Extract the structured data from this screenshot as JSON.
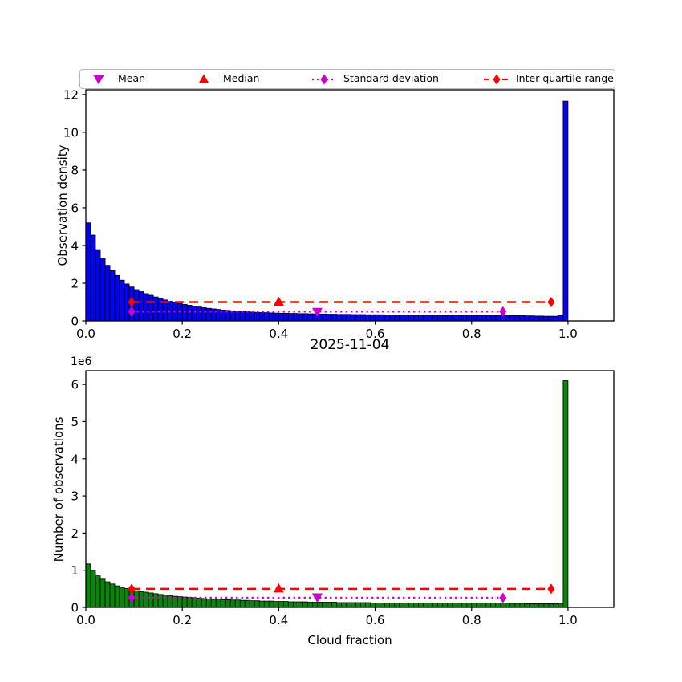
{
  "title": "2025-11-04",
  "xlabel": "Cloud fraction",
  "colors": {
    "bar_top": "#0404f0",
    "bar_bottom": "#0a840a",
    "bar_edge": "#000000",
    "median_iqr": "#ff0000",
    "mean_std": "#cc00cc",
    "axis": "#000000"
  },
  "legend": {
    "items": [
      {
        "label": "Mean",
        "marker": "triangle-down",
        "line": "none",
        "color": "#cc00cc"
      },
      {
        "label": "Median",
        "marker": "triangle-up",
        "line": "none",
        "color": "#ff0000"
      },
      {
        "label": "Standard deviation",
        "marker": "diamond",
        "line": "dotted",
        "color": "#cc00cc"
      },
      {
        "label": "Inter quartile range",
        "marker": "diamond",
        "line": "dashed",
        "color": "#ff0000"
      }
    ]
  },
  "chart_data": [
    {
      "type": "bar",
      "name": "observation-density-histogram",
      "ylabel": "Observation density",
      "bar_color": "#0404f0",
      "bin_start": 0.0,
      "bin_width": 0.01,
      "xlim": [
        0,
        1.095
      ],
      "ylim": [
        0,
        12.25
      ],
      "xticks": [
        0,
        0.2,
        0.4,
        0.6,
        0.8,
        1.0
      ],
      "xtick_labels": [
        "0.0",
        "0.2",
        "0.4",
        "0.6",
        "0.8",
        "1.0"
      ],
      "yticks": [
        0,
        2,
        4,
        6,
        8,
        10,
        12
      ],
      "ytick_labels": [
        "0",
        "2",
        "4",
        "6",
        "8",
        "10",
        "12"
      ],
      "values": [
        5.2,
        4.55,
        3.78,
        3.32,
        2.95,
        2.66,
        2.41,
        2.16,
        1.96,
        1.8,
        1.66,
        1.55,
        1.45,
        1.36,
        1.27,
        1.19,
        1.11,
        1.04,
        0.98,
        0.93,
        0.88,
        0.83,
        0.78,
        0.74,
        0.7,
        0.67,
        0.64,
        0.61,
        0.58,
        0.56,
        0.54,
        0.52,
        0.5,
        0.49,
        0.47,
        0.46,
        0.45,
        0.44,
        0.43,
        0.42,
        0.41,
        0.41,
        0.4,
        0.4,
        0.39,
        0.39,
        0.38,
        0.38,
        0.37,
        0.37,
        0.36,
        0.36,
        0.35,
        0.35,
        0.35,
        0.34,
        0.34,
        0.34,
        0.33,
        0.33,
        0.33,
        0.33,
        0.32,
        0.32,
        0.32,
        0.32,
        0.32,
        0.31,
        0.31,
        0.31,
        0.31,
        0.31,
        0.31,
        0.3,
        0.3,
        0.3,
        0.3,
        0.3,
        0.3,
        0.3,
        0.3,
        0.3,
        0.3,
        0.3,
        0.3,
        0.3,
        0.3,
        0.3,
        0.29,
        0.28,
        0.28,
        0.27,
        0.27,
        0.26,
        0.26,
        0.25,
        0.25,
        0.25,
        0.28,
        11.65
      ],
      "stats": {
        "mean_x": 0.48,
        "mean_marker_y": 0.5,
        "median_x": 0.4,
        "median_marker_y": 1.0,
        "std_x": [
          0.095,
          0.865
        ],
        "std_line_y": 0.5,
        "iqr_x": [
          0.095,
          0.965
        ],
        "iqr_line_y": 1.0
      }
    },
    {
      "type": "bar",
      "name": "number-of-observations-histogram",
      "ylabel": "Number of observations",
      "y_offset_label": "1e6",
      "bar_color": "#0a840a",
      "bin_start": 0.0,
      "bin_width": 0.01,
      "xlim": [
        0,
        1.095
      ],
      "ylim": [
        0,
        6.37
      ],
      "xticks": [
        0,
        0.2,
        0.4,
        0.6,
        0.8,
        1.0
      ],
      "xtick_labels": [
        "0.0",
        "0.2",
        "0.4",
        "0.6",
        "0.8",
        "1.0"
      ],
      "yticks": [
        0,
        1,
        2,
        3,
        4,
        5,
        6
      ],
      "ytick_labels": [
        "0",
        "1",
        "2",
        "3",
        "4",
        "5",
        "6"
      ],
      "values": [
        1.17,
        0.98,
        0.85,
        0.76,
        0.69,
        0.63,
        0.58,
        0.54,
        0.51,
        0.48,
        0.45,
        0.43,
        0.41,
        0.39,
        0.37,
        0.35,
        0.33,
        0.32,
        0.3,
        0.29,
        0.28,
        0.27,
        0.26,
        0.25,
        0.24,
        0.23,
        0.22,
        0.22,
        0.21,
        0.21,
        0.2,
        0.2,
        0.19,
        0.19,
        0.18,
        0.18,
        0.17,
        0.17,
        0.17,
        0.16,
        0.16,
        0.16,
        0.15,
        0.15,
        0.15,
        0.15,
        0.14,
        0.14,
        0.14,
        0.14,
        0.14,
        0.14,
        0.13,
        0.13,
        0.13,
        0.13,
        0.13,
        0.13,
        0.13,
        0.12,
        0.12,
        0.12,
        0.12,
        0.12,
        0.12,
        0.12,
        0.12,
        0.12,
        0.12,
        0.12,
        0.12,
        0.12,
        0.12,
        0.12,
        0.12,
        0.12,
        0.12,
        0.12,
        0.12,
        0.12,
        0.12,
        0.12,
        0.12,
        0.12,
        0.12,
        0.12,
        0.12,
        0.12,
        0.11,
        0.11,
        0.11,
        0.1,
        0.1,
        0.1,
        0.1,
        0.1,
        0.1,
        0.1,
        0.11,
        6.1
      ],
      "stats": {
        "mean_x": 0.48,
        "mean_marker_y": 0.28,
        "median_x": 0.4,
        "median_marker_y": 0.5,
        "std_x": [
          0.095,
          0.865
        ],
        "std_line_y": 0.26,
        "iqr_x": [
          0.095,
          0.965
        ],
        "iqr_line_y": 0.5
      }
    }
  ]
}
